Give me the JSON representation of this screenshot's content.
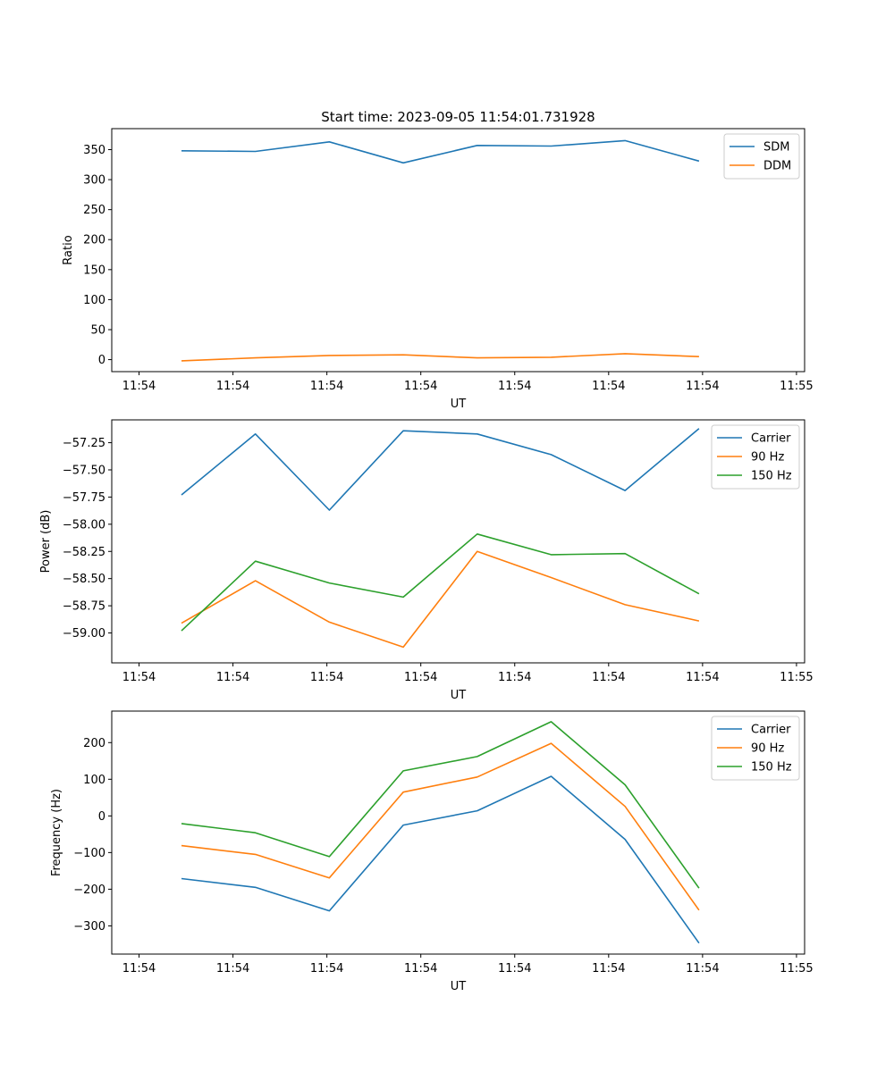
{
  "figure": {
    "title": "Start time: 2023-09-05 11:54:01.731928"
  },
  "chart_data": [
    {
      "type": "line",
      "xlabel": "UT",
      "ylabel": "Ratio",
      "legend_position": "top-right",
      "x_ticks": [
        "11:54",
        "11:54",
        "11:54",
        "11:54",
        "11:54",
        "11:54",
        "11:54",
        "11:55"
      ],
      "x": [
        1,
        2,
        3,
        4,
        5,
        6,
        7,
        8
      ],
      "xlim": [
        0.18,
        9.57
      ],
      "ylim": [
        -20,
        385
      ],
      "y_ticks": [
        0,
        50,
        100,
        150,
        200,
        250,
        300,
        350
      ],
      "series": [
        {
          "name": "SDM",
          "color": "#1f77b4",
          "values": [
            348,
            347,
            363,
            328,
            357,
            356,
            365,
            331
          ]
        },
        {
          "name": "DDM",
          "color": "#ff7f0e",
          "values": [
            -2,
            3,
            7,
            8,
            3,
            4,
            10,
            5
          ]
        }
      ]
    },
    {
      "type": "line",
      "xlabel": "UT",
      "ylabel": "Power (dB)",
      "legend_position": "top-right",
      "x_ticks": [
        "11:54",
        "11:54",
        "11:54",
        "11:54",
        "11:54",
        "11:54",
        "11:54",
        "11:55"
      ],
      "x": [
        1,
        2,
        3,
        4,
        5,
        6,
        7,
        8
      ],
      "xlim": [
        0.18,
        9.57
      ],
      "ylim": [
        -59.275,
        -57.04
      ],
      "y_ticks": [
        -59.0,
        -58.75,
        -58.5,
        -58.25,
        -58.0,
        -57.75,
        -57.5,
        -57.25
      ],
      "y_tick_labels": [
        "−59.00",
        "−58.75",
        "−58.50",
        "−58.25",
        "−58.00",
        "−57.75",
        "−57.50",
        "−57.25"
      ],
      "series": [
        {
          "name": "Carrier",
          "color": "#1f77b4",
          "values": [
            -57.73,
            -57.17,
            -57.87,
            -57.14,
            -57.17,
            -57.36,
            -57.69,
            -57.12
          ]
        },
        {
          "name": "90 Hz",
          "color": "#ff7f0e",
          "values": [
            -58.91,
            -58.52,
            -58.9,
            -59.13,
            -58.25,
            -58.49,
            -58.74,
            -58.89
          ]
        },
        {
          "name": "150 Hz",
          "color": "#2ca02c",
          "values": [
            -58.98,
            -58.34,
            -58.54,
            -58.67,
            -58.09,
            -58.28,
            -58.27,
            -58.64
          ]
        }
      ]
    },
    {
      "type": "line",
      "xlabel": "UT",
      "ylabel": "Frequency (Hz)",
      "legend_position": "top-right",
      "x_ticks": [
        "11:54",
        "11:54",
        "11:54",
        "11:54",
        "11:54",
        "11:54",
        "11:54",
        "11:55"
      ],
      "x": [
        1,
        2,
        3,
        4,
        5,
        6,
        7,
        8
      ],
      "xlim": [
        0.18,
        9.57
      ],
      "ylim": [
        -377,
        286
      ],
      "y_ticks": [
        -300,
        -200,
        -100,
        0,
        100,
        200
      ],
      "y_tick_labels": [
        "−300",
        "−200",
        "−100",
        "0",
        "100",
        "200"
      ],
      "series": [
        {
          "name": "Carrier",
          "color": "#1f77b4",
          "values": [
            -171,
            -195,
            -259,
            -25,
            14,
            108,
            -64,
            -347
          ]
        },
        {
          "name": "90 Hz",
          "color": "#ff7f0e",
          "values": [
            -81,
            -105,
            -169,
            65,
            106,
            198,
            26,
            -257
          ]
        },
        {
          "name": "150 Hz",
          "color": "#2ca02c",
          "values": [
            -21,
            -46,
            -111,
            123,
            162,
            257,
            85,
            -197
          ]
        }
      ]
    }
  ]
}
